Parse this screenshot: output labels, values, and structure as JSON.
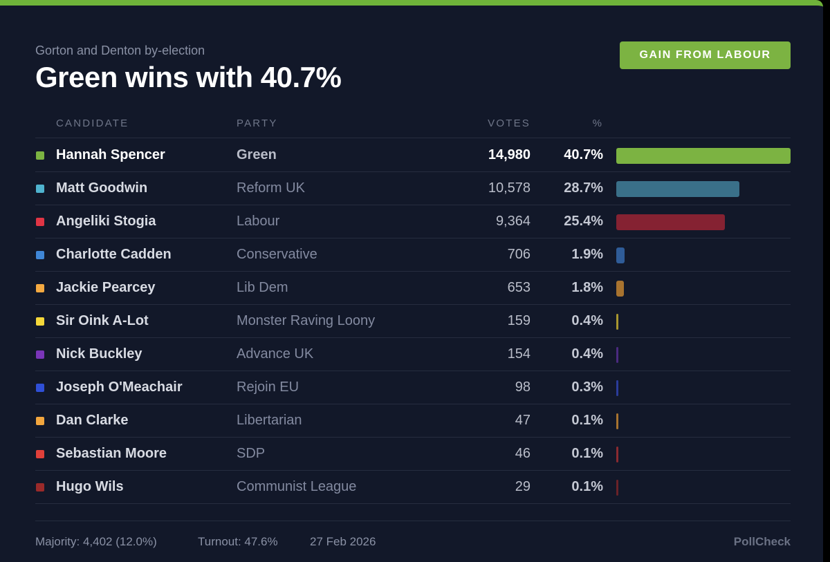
{
  "header": {
    "subtitle": "Gorton and Denton by-election",
    "title": "Green wins with 40.7%",
    "badge": "GAIN FROM LABOUR"
  },
  "columns": {
    "candidate": "CANDIDATE",
    "party": "PARTY",
    "votes": "VOTES",
    "percent": "%"
  },
  "results": [
    {
      "candidate": "Hannah Spencer",
      "party": "Green",
      "votes": "14,980",
      "percent": "40.7%",
      "share": 40.7,
      "color": "#7cb342",
      "bar_color": "#7cb342",
      "winner": true
    },
    {
      "candidate": "Matt Goodwin",
      "party": "Reform UK",
      "votes": "10,578",
      "percent": "28.7%",
      "share": 28.7,
      "color": "#4fb3cf",
      "bar_color": "#3a7089",
      "winner": false
    },
    {
      "candidate": "Angeliki Stogia",
      "party": "Labour",
      "votes": "9,364",
      "percent": "25.4%",
      "share": 25.4,
      "color": "#e03545",
      "bar_color": "#852232",
      "winner": false
    },
    {
      "candidate": "Charlotte Cadden",
      "party": "Conservative",
      "votes": "706",
      "percent": "1.9%",
      "share": 1.9,
      "color": "#3f86d6",
      "bar_color": "#2f5c98",
      "winner": false
    },
    {
      "candidate": "Jackie Pearcey",
      "party": "Lib Dem",
      "votes": "653",
      "percent": "1.8%",
      "share": 1.8,
      "color": "#f4a941",
      "bar_color": "#a8732f",
      "winner": false
    },
    {
      "candidate": "Sir Oink A-Lot",
      "party": "Monster Raving Loony",
      "votes": "159",
      "percent": "0.4%",
      "share": 0.4,
      "color": "#f5d83a",
      "bar_color": "#a8962f",
      "winner": false
    },
    {
      "candidate": "Nick Buckley",
      "party": "Advance UK",
      "votes": "154",
      "percent": "0.4%",
      "share": 0.4,
      "color": "#7a35b8",
      "bar_color": "#4a2a80",
      "winner": false
    },
    {
      "candidate": "Joseph O'Meachair",
      "party": "Rejoin EU",
      "votes": "98",
      "percent": "0.3%",
      "share": 0.3,
      "color": "#2f4fd6",
      "bar_color": "#2a3c9a",
      "winner": false
    },
    {
      "candidate": "Dan Clarke",
      "party": "Libertarian",
      "votes": "47",
      "percent": "0.1%",
      "share": 0.1,
      "color": "#f2a63e",
      "bar_color": "#a8732f",
      "winner": false
    },
    {
      "candidate": "Sebastian Moore",
      "party": "SDP",
      "votes": "46",
      "percent": "0.1%",
      "share": 0.1,
      "color": "#e0403a",
      "bar_color": "#8a2a30",
      "winner": false
    },
    {
      "candidate": "Hugo Wils",
      "party": "Communist League",
      "votes": "29",
      "percent": "0.1%",
      "share": 0.1,
      "color": "#9a2a2a",
      "bar_color": "#6a2228",
      "winner": false
    }
  ],
  "footer": {
    "majority": "Majority: 4,402 (12.0%)",
    "turnout": "Turnout: 47.6%",
    "date": "27 Feb 2026",
    "brand": "PollCheck"
  }
}
